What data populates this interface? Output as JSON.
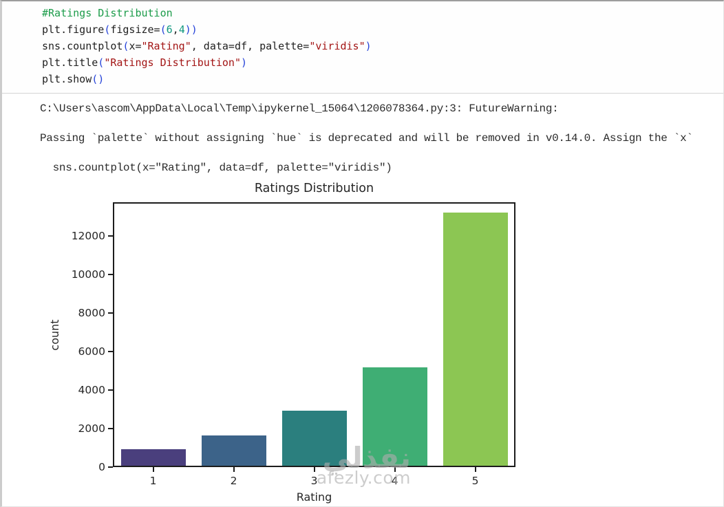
{
  "code_cell": {
    "lines": [
      [
        {
          "t": "#Ratings Distribution",
          "c": "com"
        }
      ],
      [
        {
          "t": "plt.figure",
          "c": "def"
        },
        {
          "t": "(",
          "c": "par"
        },
        {
          "t": "figsize=",
          "c": "def"
        },
        {
          "t": "(",
          "c": "par"
        },
        {
          "t": "6",
          "c": "num"
        },
        {
          "t": ",",
          "c": "def"
        },
        {
          "t": "4",
          "c": "num"
        },
        {
          "t": "))",
          "c": "par"
        }
      ],
      [
        {
          "t": "sns.countplot",
          "c": "def"
        },
        {
          "t": "(",
          "c": "par"
        },
        {
          "t": "x=",
          "c": "def"
        },
        {
          "t": "\"Rating\"",
          "c": "str"
        },
        {
          "t": ", data=df, palette=",
          "c": "def"
        },
        {
          "t": "\"viridis\"",
          "c": "str"
        },
        {
          "t": ")",
          "c": "par"
        }
      ],
      [
        {
          "t": "plt.title",
          "c": "def"
        },
        {
          "t": "(",
          "c": "par"
        },
        {
          "t": "\"Ratings Distribution\"",
          "c": "str"
        },
        {
          "t": ")",
          "c": "par"
        }
      ],
      [
        {
          "t": "plt.show",
          "c": "def"
        },
        {
          "t": "()",
          "c": "par"
        }
      ]
    ],
    "syntax_colors": {
      "comment": "#1c9c4a",
      "string": "#a31515",
      "number": "#11987f",
      "paren": "#2543d9"
    }
  },
  "warning_output": {
    "lines": [
      "C:\\Users\\ascom\\AppData\\Local\\Temp\\ipykernel_15064\\1206078364.py:3: FutureWarning:",
      "Passing `palette` without assigning `hue` is deprecated and will be removed in v0.14.0. Assign the `x`",
      "  sns.countplot(x=\"Rating\", data=df, palette=\"viridis\")"
    ]
  },
  "chart_data": {
    "type": "bar",
    "title": "Ratings Distribution",
    "xlabel": "Rating",
    "ylabel": "count",
    "categories": [
      "1",
      "2",
      "3",
      "4",
      "5"
    ],
    "values": [
      850,
      1570,
      2850,
      5100,
      13150
    ],
    "bar_colors": [
      "#4a3f7d",
      "#3c6389",
      "#2b7f7e",
      "#3fae74",
      "#8cc653"
    ],
    "yticks": [
      0,
      2000,
      4000,
      6000,
      8000,
      10000,
      12000
    ],
    "ylim": [
      0,
      13750
    ],
    "grid": false,
    "legend": null,
    "palette": "viridis"
  },
  "watermark": {
    "arabic": "نفذلي",
    "latin": "afezly.com"
  }
}
